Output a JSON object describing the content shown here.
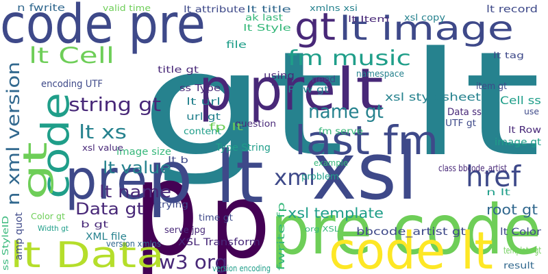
{
  "words": [
    "gt lt",
    "code pre",
    "p",
    "p",
    "pre code",
    "xsl",
    "p lt",
    "pre",
    "p pre",
    "lt",
    "code lt",
    "lt Data",
    "code",
    "gt",
    "n xml version",
    "gt",
    "lt image",
    "last fm",
    "href",
    "xml",
    "fm music",
    "string gt",
    "lt xs",
    "name gt",
    "Data gt",
    "lt name",
    "lt value",
    "w3 org",
    "xsl template",
    "root gt",
    "lt Cell",
    "lt Color",
    "bbcode_artist gt",
    "XSL Transform",
    "lt Row",
    "image gt",
    "Cell ss",
    "xsl stylesheet",
    "n fwrite",
    "valid time",
    "lt attribute",
    "lt title",
    "xmlns xsi",
    "lt Item",
    "xsl copy",
    "lt record",
    "lt Style",
    "ak last",
    "lt tag",
    "namespace",
    "using",
    "Row gt",
    "title gt",
    "ss Type",
    "lt url",
    "url gt",
    "content",
    "encoding UTF",
    "image size",
    "xsl value",
    "Type String",
    "lt b",
    "question",
    "fm serve",
    "Data ss",
    "UTF gt",
    "item gt",
    "use",
    "class bbcode_artist",
    "example",
    "problem",
    "fwrite fp",
    "n lt",
    "trying",
    "amp quot",
    "XML file",
    "b gt",
    "version xmlns",
    "time gt",
    "serve jpg",
    "version encoding",
    "org XSL",
    "template gt",
    "result",
    "need",
    "file",
    "ss StyleID",
    "Color gt",
    "Width gt",
    "fp lt"
  ]
}
